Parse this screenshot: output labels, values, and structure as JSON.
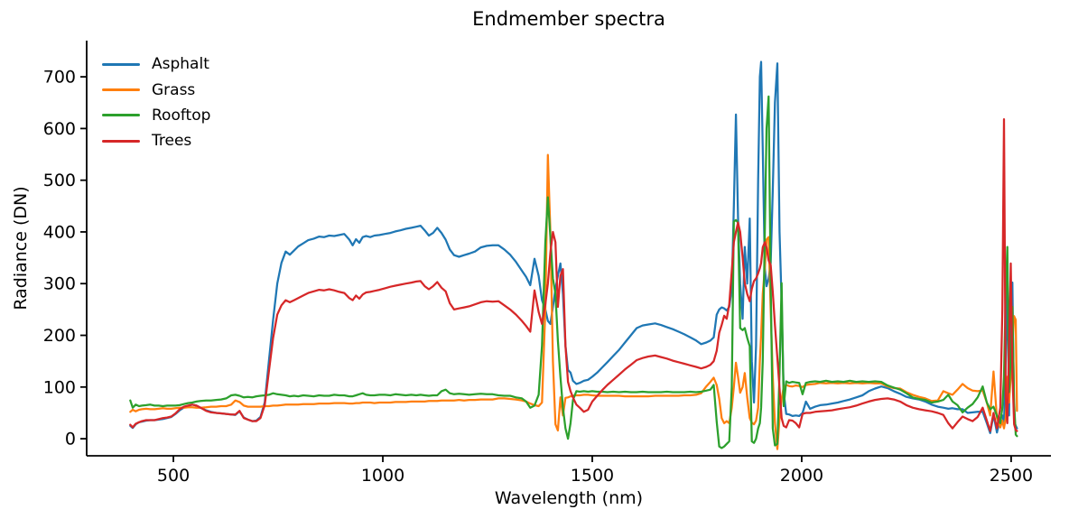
{
  "figure": {
    "title": "Endmember spectra",
    "xlabel": "Wavelength (nm)",
    "ylabel": "Radiance (DN)"
  },
  "chart_data": {
    "type": "line",
    "title": "Endmember spectra",
    "xlabel": "Wavelength (nm)",
    "ylabel": "Radiance (DN)",
    "x_ticks": [
      500,
      1000,
      1500,
      2000,
      2500
    ],
    "y_ticks": [
      0,
      100,
      200,
      300,
      400,
      500,
      600,
      700
    ],
    "xlim": [
      293,
      2595
    ],
    "ylim": [
      -33,
      770
    ],
    "grid": false,
    "legend_position": "upper left",
    "x": [
      397,
      403,
      410,
      418,
      425,
      435,
      445,
      455,
      465,
      475,
      485,
      495,
      505,
      515,
      525,
      535,
      545,
      555,
      565,
      578,
      590,
      602,
      614,
      626,
      638,
      648,
      658,
      668,
      678,
      688,
      698,
      708,
      718,
      728,
      738,
      748,
      758,
      768,
      778,
      788,
      798,
      810,
      822,
      835,
      848,
      860,
      872,
      884,
      896,
      908,
      920,
      928,
      936,
      944,
      952,
      960,
      970,
      980,
      992,
      1005,
      1018,
      1030,
      1042,
      1055,
      1068,
      1080,
      1090,
      1100,
      1110,
      1120,
      1130,
      1140,
      1150,
      1160,
      1170,
      1182,
      1194,
      1206,
      1220,
      1234,
      1248,
      1262,
      1276,
      1290,
      1304,
      1318,
      1332,
      1342,
      1352,
      1362,
      1372,
      1380,
      1388,
      1394,
      1400,
      1406,
      1412,
      1418,
      1424,
      1430,
      1436,
      1442,
      1448,
      1454,
      1462,
      1470,
      1480,
      1490,
      1500,
      1512,
      1524,
      1536,
      1550,
      1564,
      1578,
      1592,
      1606,
      1620,
      1634,
      1650,
      1664,
      1678,
      1692,
      1706,
      1720,
      1734,
      1748,
      1760,
      1772,
      1782,
      1790,
      1797,
      1803,
      1809,
      1815,
      1821,
      1827,
      1833,
      1838,
      1843,
      1848,
      1853,
      1859,
      1864,
      1870,
      1876,
      1881,
      1886,
      1891,
      1896,
      1900,
      1903,
      1907,
      1912,
      1916,
      1921,
      1926,
      1931,
      1936,
      1942,
      1947,
      1952,
      1957,
      1963,
      1970,
      1978,
      1986,
      1994,
      2002,
      2010,
      2020,
      2032,
      2044,
      2058,
      2072,
      2086,
      2100,
      2115,
      2130,
      2145,
      2160,
      2175,
      2190,
      2205,
      2220,
      2235,
      2250,
      2265,
      2280,
      2295,
      2310,
      2325,
      2338,
      2350,
      2360,
      2372,
      2384,
      2396,
      2408,
      2420,
      2432,
      2442,
      2450,
      2458,
      2466,
      2474,
      2479,
      2483,
      2487,
      2491,
      2495,
      2499,
      2503,
      2507,
      2511,
      2514
    ],
    "series": [
      {
        "name": "Asphalt",
        "color": "#1f77b4",
        "values": [
          25,
          21,
          28,
          32,
          33,
          35,
          36,
          36,
          37,
          38,
          40,
          42,
          48,
          55,
          60,
          63,
          66,
          64,
          60,
          55,
          52,
          50,
          49,
          48,
          47,
          46,
          53,
          41,
          37,
          34,
          35,
          42,
          70,
          150,
          230,
          300,
          340,
          362,
          356,
          364,
          372,
          378,
          384,
          387,
          391,
          390,
          393,
          392,
          394,
          396,
          385,
          374,
          386,
          379,
          390,
          392,
          390,
          393,
          394,
          396,
          398,
          401,
          403,
          406,
          408,
          410,
          412,
          403,
          393,
          398,
          408,
          398,
          385,
          366,
          355,
          352,
          355,
          358,
          362,
          370,
          373,
          374,
          374,
          366,
          356,
          342,
          325,
          313,
          297,
          348,
          315,
          268,
          250,
          228,
          222,
          255,
          290,
          315,
          339,
          280,
          180,
          133,
          128,
          112,
          106,
          108,
          112,
          114,
          120,
          128,
          138,
          148,
          160,
          172,
          186,
          200,
          214,
          219,
          221,
          223,
          220,
          216,
          212,
          207,
          202,
          196,
          190,
          183,
          186,
          190,
          196,
          240,
          250,
          254,
          252,
          248,
          255,
          290,
          450,
          627,
          430,
          300,
          232,
          371,
          300,
          426,
          150,
          70,
          180,
          500,
          700,
          729,
          560,
          330,
          295,
          310,
          340,
          480,
          650,
          726,
          400,
          264,
          90,
          48,
          47,
          44,
          45,
          44,
          50,
          72,
          58,
          62,
          65,
          66,
          68,
          70,
          73,
          76,
          80,
          84,
          92,
          97,
          101,
          98,
          92,
          87,
          81,
          78,
          76,
          72,
          66,
          62,
          60,
          58,
          59,
          57,
          57,
          50,
          51,
          52,
          52,
          30,
          11,
          46,
          12,
          40,
          45,
          28,
          150,
          322,
          45,
          300,
          302,
          35,
          25,
          20
        ]
      },
      {
        "name": "Grass",
        "color": "#ff7f0e",
        "values": [
          52,
          56,
          53,
          56,
          57,
          58,
          57,
          57,
          58,
          59,
          58,
          58,
          59,
          60,
          60,
          61,
          61,
          60,
          60,
          61,
          62,
          62,
          63,
          63,
          66,
          74,
          71,
          64,
          62,
          62,
          62,
          62,
          63,
          63,
          64,
          64,
          65,
          66,
          66,
          66,
          66,
          67,
          67,
          67,
          68,
          68,
          68,
          69,
          69,
          69,
          68,
          68,
          69,
          69,
          70,
          70,
          70,
          69,
          70,
          70,
          70,
          71,
          71,
          71,
          72,
          72,
          72,
          72,
          73,
          73,
          73,
          74,
          74,
          74,
          74,
          75,
          74,
          75,
          75,
          76,
          76,
          76,
          78,
          78,
          77,
          76,
          74,
          72,
          68,
          65,
          63,
          70,
          250,
          549,
          400,
          150,
          28,
          16,
          80,
          45,
          79,
          80,
          82,
          83,
          84,
          84,
          85,
          85,
          84,
          83,
          83,
          83,
          83,
          83,
          82,
          82,
          82,
          82,
          82,
          83,
          83,
          83,
          83,
          83,
          84,
          84,
          85,
          88,
          101,
          110,
          118,
          104,
          77,
          40,
          30,
          34,
          30,
          60,
          100,
          147,
          120,
          89,
          100,
          127,
          80,
          40,
          31,
          28,
          35,
          60,
          150,
          200,
          280,
          330,
          385,
          390,
          250,
          120,
          30,
          -20,
          40,
          77,
          100,
          104,
          102,
          101,
          103,
          102,
          100,
          104,
          105,
          106,
          108,
          107,
          108,
          107,
          108,
          107,
          108,
          107,
          108,
          107,
          107,
          101,
          98,
          97,
          90,
          85,
          81,
          78,
          73,
          74,
          92,
          88,
          85,
          95,
          106,
          98,
          93,
          92,
          93,
          70,
          45,
          130,
          40,
          22,
          35,
          20,
          40,
          120,
          70,
          120,
          180,
          237,
          230,
          54
        ]
      },
      {
        "name": "Rooftop",
        "color": "#2ca02c",
        "values": [
          74,
          60,
          66,
          63,
          64,
          65,
          66,
          64,
          64,
          63,
          64,
          64,
          64,
          65,
          67,
          69,
          70,
          72,
          73,
          74,
          74,
          75,
          76,
          78,
          84,
          85,
          83,
          80,
          81,
          80,
          82,
          83,
          84,
          85,
          88,
          86,
          85,
          84,
          82,
          83,
          82,
          84,
          83,
          82,
          84,
          83,
          83,
          85,
          84,
          84,
          82,
          82,
          84,
          86,
          88,
          85,
          84,
          84,
          85,
          85,
          84,
          86,
          85,
          84,
          85,
          84,
          85,
          84,
          83,
          84,
          84,
          92,
          95,
          88,
          86,
          87,
          86,
          85,
          86,
          87,
          86,
          86,
          84,
          83,
          83,
          80,
          78,
          72,
          60,
          64,
          85,
          180,
          380,
          467,
          390,
          310,
          280,
          190,
          120,
          60,
          20,
          0,
          30,
          75,
          92,
          91,
          92,
          91,
          92,
          91,
          91,
          90,
          91,
          90,
          91,
          90,
          90,
          91,
          90,
          90,
          90,
          91,
          90,
          90,
          90,
          91,
          90,
          91,
          93,
          95,
          104,
          33,
          -15,
          -18,
          -15,
          -10,
          -5,
          100,
          420,
          423,
          418,
          214,
          210,
          214,
          195,
          179,
          -5,
          -8,
          0,
          20,
          30,
          60,
          150,
          400,
          600,
          662,
          300,
          20,
          -13,
          -10,
          127,
          301,
          63,
          111,
          108,
          110,
          109,
          108,
          86,
          108,
          110,
          111,
          110,
          112,
          110,
          111,
          110,
          112,
          110,
          111,
          110,
          111,
          110,
          103,
          99,
          95,
          88,
          80,
          77,
          75,
          70,
          72,
          75,
          85,
          72,
          65,
          51,
          60,
          67,
          80,
          101,
          70,
          57,
          62,
          44,
          30,
          60,
          120,
          280,
          371,
          90,
          160,
          255,
          70,
          8,
          5
        ]
      },
      {
        "name": "Trees",
        "color": "#d62728",
        "values": [
          27,
          22,
          29,
          32,
          34,
          36,
          36,
          36,
          38,
          40,
          41,
          43,
          49,
          57,
          62,
          64,
          66,
          64,
          60,
          54,
          51,
          50,
          49,
          48,
          47,
          47,
          54,
          40,
          37,
          34,
          34,
          40,
          65,
          130,
          195,
          240,
          258,
          268,
          264,
          268,
          272,
          277,
          282,
          285,
          288,
          287,
          289,
          287,
          284,
          282,
          272,
          268,
          277,
          271,
          279,
          283,
          284,
          286,
          288,
          291,
          294,
          296,
          298,
          300,
          302,
          304,
          305,
          295,
          289,
          295,
          303,
          292,
          285,
          262,
          250,
          252,
          254,
          256,
          260,
          264,
          266,
          265,
          266,
          258,
          250,
          240,
          228,
          218,
          207,
          287,
          245,
          222,
          260,
          300,
          360,
          400,
          380,
          255,
          315,
          328,
          180,
          110,
          92,
          80,
          66,
          60,
          52,
          56,
          72,
          83,
          94,
          104,
          114,
          124,
          134,
          143,
          152,
          156,
          159,
          161,
          158,
          155,
          151,
          148,
          145,
          142,
          139,
          136,
          139,
          143,
          150,
          170,
          205,
          220,
          238,
          232,
          260,
          325,
          380,
          400,
          418,
          400,
          351,
          301,
          280,
          266,
          290,
          305,
          310,
          320,
          330,
          340,
          370,
          380,
          370,
          345,
          336,
          284,
          220,
          156,
          98,
          40,
          25,
          22,
          36,
          35,
          30,
          22,
          48,
          50,
          50,
          52,
          53,
          54,
          55,
          57,
          59,
          61,
          64,
          68,
          72,
          75,
          77,
          78,
          76,
          72,
          65,
          60,
          57,
          55,
          53,
          50,
          46,
          30,
          20,
          32,
          43,
          38,
          34,
          42,
          60,
          35,
          15,
          50,
          20,
          60,
          250,
          618,
          80,
          30,
          180,
          339,
          130,
          28,
          17,
          15
        ]
      }
    ]
  }
}
